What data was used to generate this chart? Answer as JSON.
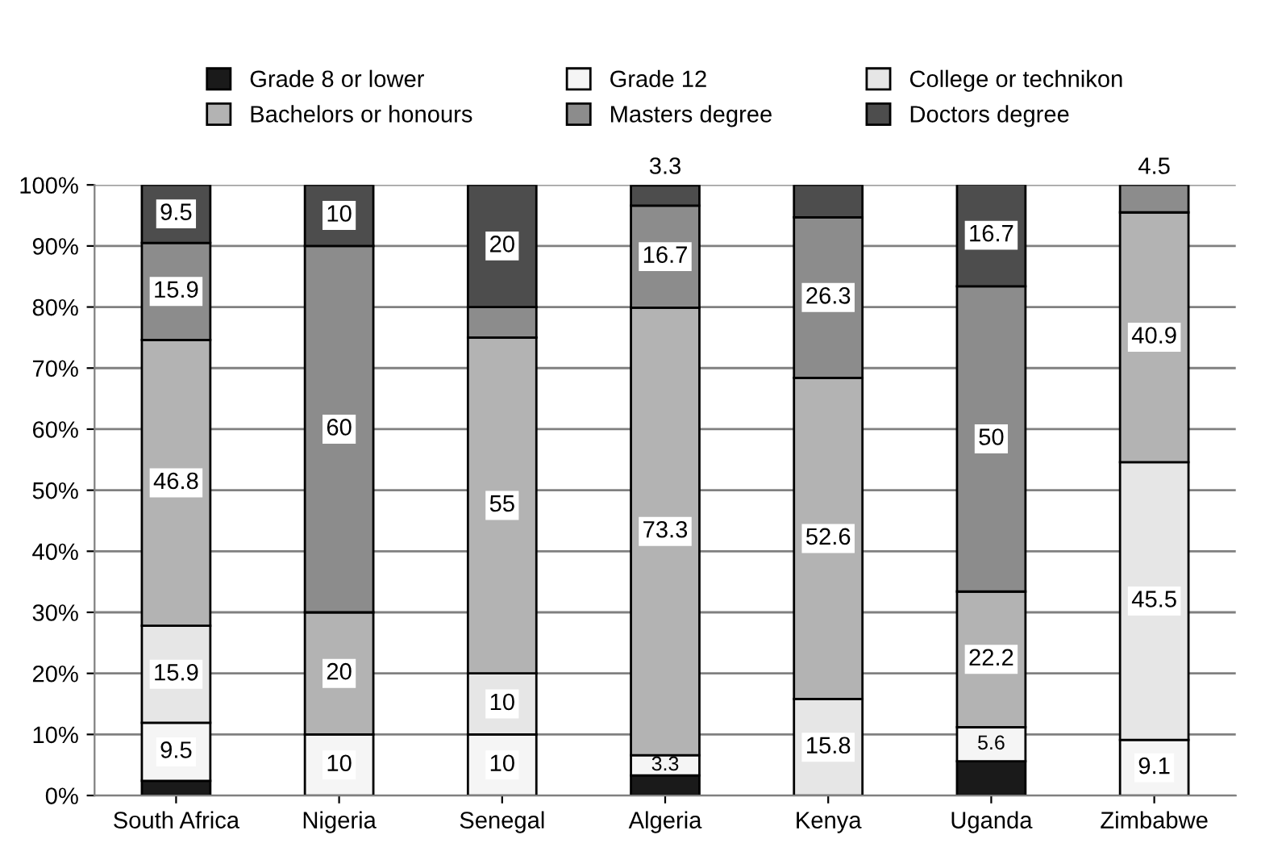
{
  "chart_data": {
    "type": "bar",
    "stacked": true,
    "categories": [
      "South Africa",
      "Nigeria",
      "Senegal",
      "Algeria",
      "Kenya",
      "Uganda",
      "Zimbabwe"
    ],
    "series": [
      {
        "name": "Grade 8 or lower",
        "color": "#1a1a1a",
        "values": [
          2.4,
          null,
          null,
          3.3,
          null,
          5.6,
          null
        ],
        "value_labels": [
          null,
          null,
          null,
          null,
          null,
          null,
          null
        ]
      },
      {
        "name": "Grade 12",
        "color": "#f5f5f5",
        "values": [
          9.5,
          10,
          10,
          3.3,
          null,
          5.6,
          9.1
        ],
        "value_labels": [
          "9.5",
          "10",
          "10",
          "3.3",
          null,
          "5.6",
          "9.1"
        ]
      },
      {
        "name": "College or technikon",
        "color": "#e6e6e6",
        "values": [
          15.9,
          null,
          10,
          null,
          15.8,
          null,
          45.5
        ],
        "value_labels": [
          "15.9",
          null,
          "10",
          null,
          "15.8",
          null,
          "45.5"
        ]
      },
      {
        "name": "Bachelors or honours",
        "color": "#b3b3b3",
        "values": [
          46.8,
          20,
          55,
          73.3,
          52.6,
          22.2,
          40.9
        ],
        "value_labels": [
          "46.8",
          "20",
          "55",
          "73.3",
          "52.6",
          "22.2",
          "40.9"
        ]
      },
      {
        "name": "Masters degree",
        "color": "#8c8c8c",
        "values": [
          15.9,
          60,
          5,
          16.7,
          26.3,
          50,
          4.5
        ],
        "value_labels": [
          "15.9",
          "60",
          null,
          "16.7",
          "26.3",
          "50",
          "4.5"
        ]
      },
      {
        "name": "Doctors degree",
        "color": "#4d4d4d",
        "values": [
          9.5,
          10,
          20,
          3.3,
          5.3,
          16.7,
          null
        ],
        "value_labels": [
          "9.5",
          "10",
          "20",
          "3.3",
          null,
          "16.7",
          null
        ]
      }
    ],
    "ylim": [
      0,
      100
    ],
    "yticks": [
      {
        "value": 0,
        "label": "0%"
      },
      {
        "value": 10,
        "label": "10%"
      },
      {
        "value": 20,
        "label": "20%"
      },
      {
        "value": 30,
        "label": "30%"
      },
      {
        "value": 40,
        "label": "40%"
      },
      {
        "value": 50,
        "label": "50%"
      },
      {
        "value": 60,
        "label": "60%"
      },
      {
        "value": 70,
        "label": "70%"
      },
      {
        "value": 80,
        "label": "80%"
      },
      {
        "value": 90,
        "label": "90%"
      },
      {
        "value": 100,
        "label": "100%"
      }
    ],
    "grid": "y",
    "legend": "top"
  }
}
